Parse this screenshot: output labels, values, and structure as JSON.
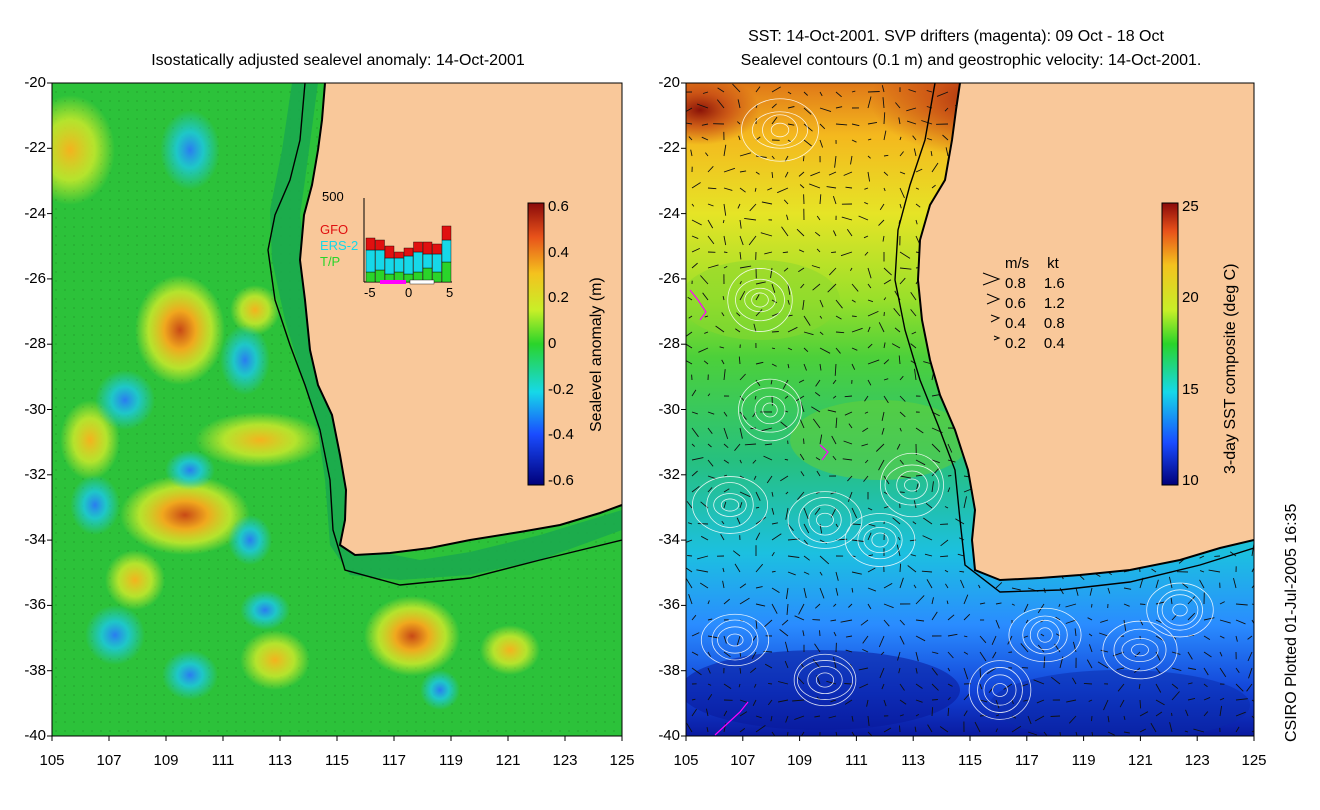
{
  "left_panel": {
    "title": "Isostatically adjusted sealevel anomaly: 14-Oct-2001",
    "colorbar": {
      "label": "Sealevel anomaly (m)",
      "ticks": [
        "0.6",
        "0.4",
        "0.2",
        "0",
        "-0.2",
        "-0.4",
        "-0.6"
      ]
    },
    "inset": {
      "ymax_label": "500",
      "x_ticks": [
        "-5",
        "0",
        "5"
      ],
      "legend": [
        {
          "name": "GFO",
          "color": "#e01010"
        },
        {
          "name": "ERS-2",
          "color": "#16d8e8"
        },
        {
          "name": "T/P",
          "color": "#2ad42a"
        }
      ]
    }
  },
  "right_panel": {
    "title_line1": "SST: 14-Oct-2001. SVP drifters (magenta): 09 Oct - 18 Oct",
    "title_line2": "Sealevel contours (0.1 m) and geostrophic velocity: 14-Oct-2001.",
    "colorbar": {
      "label": "3-day SST composite (deg C)",
      "ticks": [
        "25",
        "20",
        "15",
        "10"
      ]
    },
    "velocity_legend": {
      "header_ms": "m/s",
      "header_kt": "kt",
      "rows": [
        {
          "ms": "0.8",
          "kt": "1.6"
        },
        {
          "ms": "0.6",
          "kt": "1.2"
        },
        {
          "ms": "0.4",
          "kt": "0.8"
        },
        {
          "ms": "0.2",
          "kt": "0.4"
        }
      ]
    }
  },
  "axes": {
    "y_ticks": [
      "-20",
      "-22",
      "-24",
      "-26",
      "-28",
      "-30",
      "-32",
      "-34",
      "-36",
      "-38",
      "-40"
    ],
    "x_ticks": [
      "105",
      "107",
      "109",
      "111",
      "113",
      "115",
      "117",
      "119",
      "121",
      "123",
      "125"
    ]
  },
  "credit": "CSIRO Plotted 01-Jul-2005 16:35",
  "colors": {
    "land": "#f9c89a",
    "ocean_base": "#2cc23a"
  }
}
